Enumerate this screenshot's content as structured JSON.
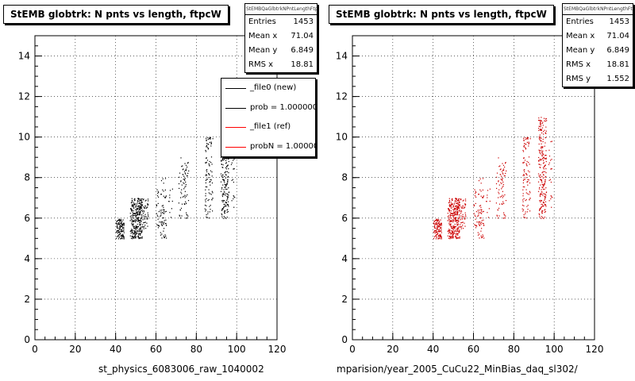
{
  "panels": [
    {
      "title": "StEMB globtrk: N pnts vs length, ftpcW",
      "stats_name": "StEMBQaGlbtrkNPntLengthFtpcW",
      "stats": [
        {
          "label": "Entries",
          "value": "1453"
        },
        {
          "label": "Mean x",
          "value": "71.04"
        },
        {
          "label": "Mean y",
          "value": "6.849"
        },
        {
          "label": "RMS x",
          "value": "18.81"
        }
      ],
      "legend": [
        {
          "label": "_file0 (new)",
          "color": "#000000"
        },
        {
          "label": "prob = 1.000000",
          "color": "#000000"
        },
        {
          "label": "_file1 (ref)",
          "color": "#ff0000"
        },
        {
          "label": "probN = 1.000000",
          "color": "#ff0000"
        }
      ],
      "xlabel": "st_physics_6083006_raw_1040002",
      "marker_color": "#000000"
    },
    {
      "title": "StEMB globtrk: N pnts vs length, ftpcW",
      "stats_name": "StEMBQaGlbtrkNPntLengthFtpcW",
      "stats": [
        {
          "label": "Entries",
          "value": "1453"
        },
        {
          "label": "Mean x",
          "value": "71.04"
        },
        {
          "label": "Mean y",
          "value": "6.849"
        },
        {
          "label": "RMS x",
          "value": "18.81"
        },
        {
          "label": "RMS y",
          "value": "1.552"
        }
      ],
      "xlabel": "mparision/year_2005_CuCu22_MinBias_daq_sl302/",
      "marker_color": "#cc0000"
    }
  ],
  "chart_data": {
    "type": "scatter",
    "xlim": [
      0,
      120
    ],
    "ylim": [
      0,
      15
    ],
    "x_ticks": [
      "0",
      "20",
      "40",
      "60",
      "80",
      "100",
      "120"
    ],
    "y_ticks": [
      "0",
      "2",
      "4",
      "6",
      "8",
      "10",
      "12",
      "14"
    ],
    "grid": true,
    "clusters": [
      {
        "x": [
          40,
          44
        ],
        "y": [
          5.0,
          6.0
        ],
        "n": 120
      },
      {
        "x": [
          47,
          50
        ],
        "y": [
          5.0,
          7.0
        ],
        "n": 140
      },
      {
        "x": [
          50,
          53
        ],
        "y": [
          5.0,
          7.0
        ],
        "n": 170
      },
      {
        "x": [
          53,
          56
        ],
        "y": [
          5.5,
          7.0
        ],
        "n": 50
      },
      {
        "x": [
          60,
          62
        ],
        "y": [
          5.5,
          7.5
        ],
        "n": 25
      },
      {
        "x": [
          62,
          65
        ],
        "y": [
          5.0,
          8.0
        ],
        "n": 60
      },
      {
        "x": [
          66,
          68
        ],
        "y": [
          6.0,
          7.5
        ],
        "n": 10
      },
      {
        "x": [
          71,
          76
        ],
        "y": [
          6.0,
          9.0
        ],
        "n": 75
      },
      {
        "x": [
          84,
          88
        ],
        "y": [
          6.0,
          10.0
        ],
        "n": 100
      },
      {
        "x": [
          92,
          96
        ],
        "y": [
          6.0,
          11.0
        ],
        "n": 230
      },
      {
        "x": [
          97,
          99
        ],
        "y": [
          6.5,
          10.0
        ],
        "n": 20
      }
    ]
  }
}
